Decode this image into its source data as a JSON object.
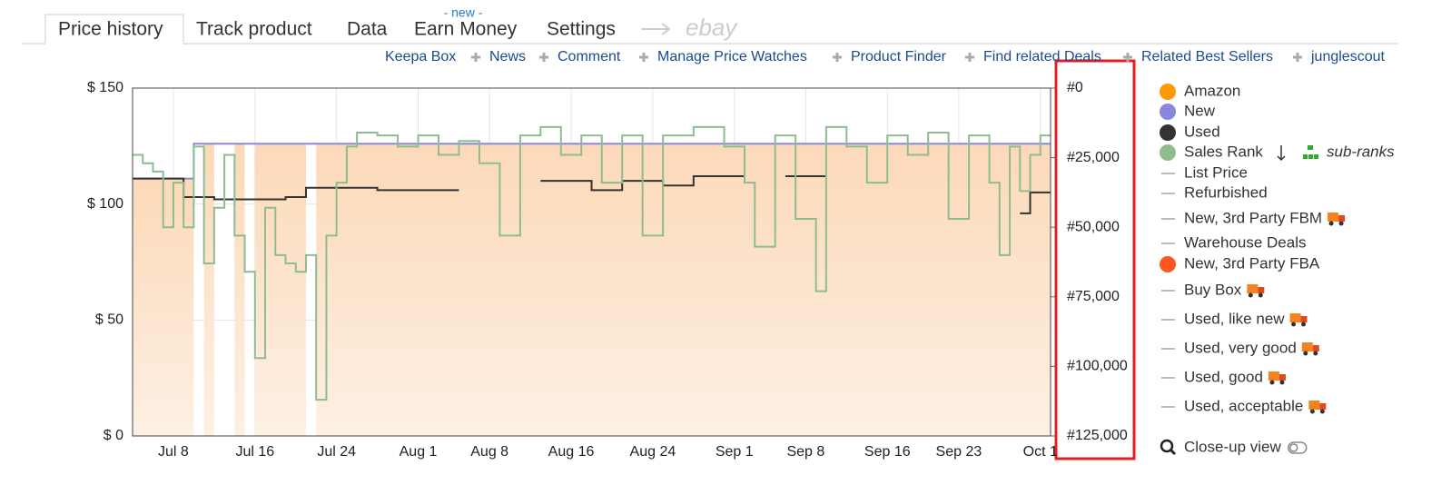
{
  "tabs": [
    "Price history",
    "Track product",
    "Data",
    "Earn Money",
    "Settings"
  ],
  "new_badge": "- new -",
  "ebay": "ebay",
  "links": [
    "Keepa Box",
    "News",
    "Comment",
    "Manage Price Watches",
    "Product Finder",
    "Find related Deals",
    "Related Best Sellers",
    "junglescout"
  ],
  "chart_data": {
    "type": "line",
    "xlim": [
      "Jul 4",
      "Oct 2"
    ],
    "xticks": [
      "Jul 8",
      "Jul 16",
      "Jul 24",
      "Aug 1",
      "Aug 8",
      "Aug 16",
      "Aug 24",
      "Sep 1",
      "Sep 8",
      "Sep 16",
      "Sep 23",
      "Oct 1"
    ],
    "ylim": [
      0,
      150
    ],
    "yticks": [
      {
        "value": 0,
        "label": "$ 0"
      },
      {
        "value": 50,
        "label": "$ 50"
      },
      {
        "value": 100,
        "label": "$ 100"
      },
      {
        "value": 150,
        "label": "$ 150"
      }
    ],
    "y2lim": [
      125000,
      0
    ],
    "y2ticks": [
      {
        "value": 0,
        "label": "#0"
      },
      {
        "value": 25000,
        "label": "#25,000"
      },
      {
        "value": 50000,
        "label": "#50,000"
      },
      {
        "value": 75000,
        "label": "#75,000"
      },
      {
        "value": 100000,
        "label": "#100,000"
      },
      {
        "value": 125000,
        "label": "#125,000"
      }
    ],
    "grid": true,
    "series": [
      {
        "name": "Amazon",
        "color": "#ff9900",
        "style": "area",
        "x": [
          "Jul 4",
          "Jul 10",
          "Jul 11",
          "Jul 12",
          "Jul 14",
          "Jul 15",
          "Jul 16",
          "Jul 21",
          "Jul 22",
          "Oct 2"
        ],
        "values": [
          111,
          null,
          126,
          null,
          126,
          null,
          126,
          null,
          126,
          126
        ]
      },
      {
        "name": "New",
        "color": "#8888dd",
        "style": "step",
        "x": [
          "Jul 4",
          "Jul 10",
          "Oct 2"
        ],
        "values": [
          111,
          126,
          126
        ]
      },
      {
        "name": "Used",
        "color": "#333333",
        "style": "step",
        "x": [
          "Jul 4",
          "Jul 9",
          "Jul 12",
          "Jul 19",
          "Jul 21",
          "Jul 28",
          "Aug 5",
          "Aug 13",
          "Aug 18",
          "Aug 21",
          "Aug 25",
          "Aug 28",
          "Sep 2",
          "Sep 6",
          "Sep 10",
          "Sep 29",
          "Sep 30",
          "Oct 2"
        ],
        "values": [
          111,
          103,
          102,
          103,
          107,
          106,
          null,
          110,
          106,
          110,
          108,
          112,
          null,
          112,
          null,
          96,
          105,
          105
        ]
      },
      {
        "name": "Sales Rank",
        "color": "#8fbc8f",
        "style": "step",
        "axis": "y2",
        "x": [
          "Jul 4",
          "Jul 5",
          "Jul 6",
          "Jul 7",
          "Jul 8",
          "Jul 9",
          "Jul 10",
          "Jul 11",
          "Jul 12",
          "Jul 13",
          "Jul 14",
          "Jul 15",
          "Jul 16",
          "Jul 17",
          "Jul 18",
          "Jul 19",
          "Jul 20",
          "Jul 21",
          "Jul 22",
          "Jul 23",
          "Jul 24",
          "Jul 25",
          "Jul 26",
          "Jul 28",
          "Jul 30",
          "Aug 1",
          "Aug 3",
          "Aug 5",
          "Aug 7",
          "Aug 9",
          "Aug 11",
          "Aug 13",
          "Aug 15",
          "Aug 17",
          "Aug 19",
          "Aug 21",
          "Aug 23",
          "Aug 25",
          "Aug 28",
          "Aug 31",
          "Sep 2",
          "Sep 3",
          "Sep 5",
          "Sep 7",
          "Sep 9",
          "Sep 10",
          "Sep 12",
          "Sep 14",
          "Sep 16",
          "Sep 18",
          "Sep 20",
          "Sep 22",
          "Sep 24",
          "Sep 26",
          "Sep 27",
          "Sep 28",
          "Sep 29",
          "Sep 30",
          "Oct 1",
          "Oct 2"
        ],
        "values": [
          24000,
          27000,
          30000,
          50000,
          34000,
          50000,
          21000,
          63000,
          43000,
          24000,
          53000,
          66000,
          97000,
          43000,
          60000,
          63000,
          66000,
          60000,
          112000,
          53000,
          34000,
          21000,
          16000,
          17000,
          21000,
          17000,
          24000,
          19000,
          27000,
          53000,
          17000,
          14000,
          24000,
          17000,
          34000,
          17000,
          53000,
          17000,
          14000,
          21000,
          34000,
          57000,
          17000,
          47000,
          73000,
          14000,
          21000,
          34000,
          17000,
          24000,
          16000,
          47000,
          17000,
          34000,
          60000,
          21000,
          37000,
          24000,
          17000,
          17000
        ]
      }
    ]
  },
  "legend": [
    {
      "name": "Amazon",
      "color": "#ff9900",
      "marker": "dot"
    },
    {
      "name": "New",
      "color": "#8888dd",
      "marker": "dot"
    },
    {
      "name": "Used",
      "color": "#333333",
      "marker": "dot"
    },
    {
      "name": "Sales Rank",
      "color": "#8fbc8f",
      "marker": "dot"
    },
    {
      "name": "List Price",
      "color": "#bbbbbb",
      "marker": "dash"
    },
    {
      "name": "Refurbished",
      "color": "#bbbbbb",
      "marker": "dash"
    },
    {
      "name": "New, 3rd Party FBM",
      "color": "#bbbbbb",
      "marker": "dash",
      "truck": true
    },
    {
      "name": "Warehouse Deals",
      "color": "#bbbbbb",
      "marker": "dash"
    },
    {
      "name": "New, 3rd Party FBA",
      "color": "#ff5722",
      "marker": "dot"
    },
    {
      "name": "Buy Box",
      "color": "#bbbbbb",
      "marker": "dash",
      "truck": true
    },
    {
      "name": "Used, like new",
      "color": "#bbbbbb",
      "marker": "dash",
      "truck": true
    },
    {
      "name": "Used, very good",
      "color": "#bbbbbb",
      "marker": "dash",
      "truck": true
    },
    {
      "name": "Used, good",
      "color": "#bbbbbb",
      "marker": "dash",
      "truck": true
    },
    {
      "name": "Used, acceptable",
      "color": "#bbbbbb",
      "marker": "dash",
      "truck": true
    }
  ],
  "sub_ranks": "sub-ranks",
  "close_up": "Close-up view"
}
